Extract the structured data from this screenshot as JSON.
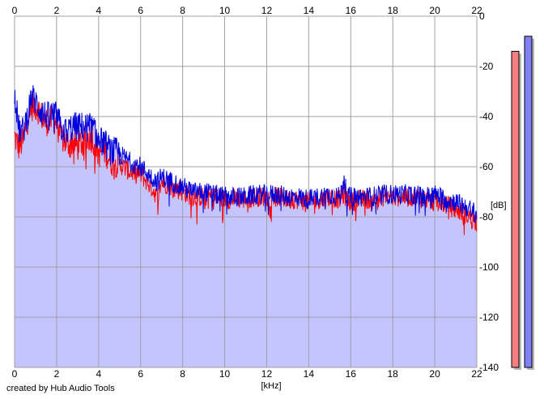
{
  "footer": {
    "credit": "created by Hub Audio Tools"
  },
  "colors": {
    "background": "#ffffff",
    "plot_area": "#ffffff",
    "fill": "#c4c4ff",
    "grid": "#a0a0a0",
    "series_left": "#ff0000",
    "series_right": "#0000dd",
    "meter_left": "#f28080",
    "meter_right": "#8080f2",
    "meter_shadow": "#b8b8b8"
  },
  "chart_data": {
    "type": "line",
    "title": "",
    "xlabel": "[kHz]",
    "ylabel": "[dB]",
    "xlim": [
      0,
      22
    ],
    "ylim": [
      -140,
      0
    ],
    "x_ticks": [
      "0",
      "2",
      "4",
      "6",
      "8",
      "10",
      "12",
      "14",
      "16",
      "18",
      "20",
      "22"
    ],
    "y_ticks": [
      "0",
      "-20",
      "-40",
      "-60",
      "-80",
      "-100",
      "-120",
      "-140"
    ],
    "grid": true,
    "x": [
      0,
      0.2,
      0.4,
      0.6,
      0.8,
      1.0,
      1.2,
      1.4,
      1.6,
      1.8,
      2.0,
      2.2,
      2.4,
      2.6,
      2.8,
      3.0,
      3.2,
      3.4,
      3.6,
      3.8,
      4.0,
      4.2,
      4.4,
      4.6,
      4.8,
      5.0,
      5.5,
      6.0,
      6.5,
      6.8,
      7.0,
      7.5,
      8.0,
      8.5,
      9.0,
      9.5,
      10.0,
      10.5,
      11.0,
      11.5,
      12.0,
      12.5,
      13.0,
      13.5,
      14.0,
      14.5,
      15.0,
      15.5,
      15.7,
      15.8,
      16.0,
      16.5,
      17.0,
      17.5,
      18.0,
      18.5,
      19.0,
      19.5,
      20.0,
      20.5,
      21.0,
      21.5,
      22.0
    ],
    "series": [
      {
        "values": [
          -48,
          -52,
          -50,
          -42,
          -36,
          -36,
          -38,
          -42,
          -42,
          -41,
          -42,
          -48,
          -50,
          -51,
          -50,
          -52,
          -50,
          -49,
          -48,
          -50,
          -55,
          -53,
          -55,
          -58,
          -58,
          -59,
          -62,
          -63,
          -68,
          -72,
          -66,
          -68,
          -70,
          -72,
          -72,
          -72,
          -73,
          -73,
          -73,
          -72,
          -72,
          -72,
          -73,
          -73,
          -74,
          -73,
          -72,
          -73,
          -71,
          -73,
          -74,
          -73,
          -73,
          -72,
          -72,
          -72,
          -72,
          -73,
          -74,
          -75,
          -77,
          -79,
          -82
        ]
      },
      {
        "values": [
          -30,
          -45,
          -46,
          -40,
          -32,
          -34,
          -37,
          -39,
          -40,
          -39,
          -40,
          -44,
          -46,
          -45,
          -44,
          -44,
          -44,
          -44,
          -44,
          -46,
          -50,
          -50,
          -52,
          -54,
          -54,
          -55,
          -58,
          -60,
          -64,
          -66,
          -64,
          -66,
          -68,
          -70,
          -70,
          -71,
          -72,
          -72,
          -72,
          -71,
          -71,
          -71,
          -72,
          -72,
          -73,
          -72,
          -71,
          -72,
          -64,
          -72,
          -72,
          -72,
          -72,
          -71,
          -71,
          -71,
          -71,
          -72,
          -71,
          -73,
          -74,
          -76,
          -79
        ]
      }
    ],
    "meters": [
      {
        "channel": "L",
        "level_db": -14
      },
      {
        "channel": "R",
        "level_db": -8
      }
    ]
  }
}
